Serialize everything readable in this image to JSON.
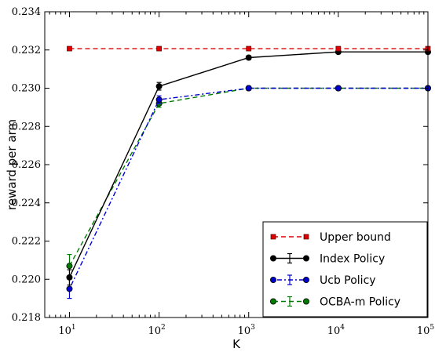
{
  "chart_data": {
    "type": "line",
    "title": "",
    "xlabel": "K",
    "ylabel": "reward per arm",
    "x_scale": "log",
    "x": [
      10,
      100,
      1000,
      10000,
      100000
    ],
    "x_tick_labels": [
      {
        "base": "10",
        "exp": "1"
      },
      {
        "base": "10",
        "exp": "2"
      },
      {
        "base": "10",
        "exp": "3"
      },
      {
        "base": "10",
        "exp": "4"
      },
      {
        "base": "10",
        "exp": "5"
      }
    ],
    "y_ticks": [
      "0.218",
      "0.220",
      "0.222",
      "0.224",
      "0.226",
      "0.228",
      "0.230",
      "0.232",
      "0.234"
    ],
    "ylim": [
      0.218,
      0.234
    ],
    "xlim": [
      5.3,
      100000
    ],
    "grid": false,
    "legend_position": "lower-right",
    "series": [
      {
        "name": "Upper bound",
        "color": "#dd0000",
        "dash": "dashed",
        "marker": "square",
        "values": [
          0.23207,
          0.23207,
          0.23207,
          0.23207,
          0.23207
        ],
        "errors": [
          0,
          0,
          0,
          0,
          0
        ]
      },
      {
        "name": "Index Policy",
        "color": "#000000",
        "dash": "solid",
        "marker": "circle",
        "values": [
          0.2201,
          0.2301,
          0.2316,
          0.2319,
          0.2319
        ],
        "errors": [
          0.0004,
          0.0002,
          0.0001,
          0.0001,
          0.0001
        ]
      },
      {
        "name": "Ucb Policy",
        "color": "#0000cc",
        "dash": "dashdot",
        "marker": "circle",
        "values": [
          0.2195,
          0.2294,
          0.23,
          0.23,
          0.23
        ],
        "errors": [
          0.0005,
          0.0002,
          0.0001,
          0.0001,
          0.0001
        ]
      },
      {
        "name": "OCBA-m Policy",
        "color": "#007a00",
        "dash": "dashed",
        "marker": "circle",
        "values": [
          0.2207,
          0.2292,
          0.23,
          0.23,
          0.23
        ],
        "errors": [
          0.0006,
          0.0002,
          0.0001,
          0.0001,
          0.0001
        ]
      }
    ]
  }
}
